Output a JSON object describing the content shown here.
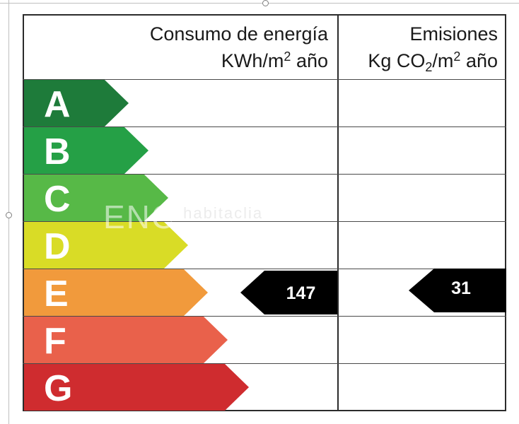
{
  "header": {
    "energy_title": "Consumo de energía",
    "energy_unit_pre": "KWh/m",
    "energy_unit_sup": "2",
    "energy_unit_post": " año",
    "emissions_title": "Emisiones",
    "emissions_unit_pre": "Kg CO",
    "emissions_unit_sub": "2",
    "emissions_unit_mid": "/m",
    "emissions_unit_sup": "2",
    "emissions_unit_post": " año"
  },
  "ratings": [
    {
      "letter": "A",
      "color": "#1e7b3a"
    },
    {
      "letter": "B",
      "color": "#25a046"
    },
    {
      "letter": "C",
      "color": "#57b947"
    },
    {
      "letter": "D",
      "color": "#d9dc26"
    },
    {
      "letter": "E",
      "color": "#f19a3c"
    },
    {
      "letter": "F",
      "color": "#e9614b"
    },
    {
      "letter": "G",
      "color": "#cf2c2f"
    }
  ],
  "energy_value": "147",
  "emissions_value": "31",
  "watermark": {
    "left": "ENC",
    "small": "habitaclia"
  }
}
